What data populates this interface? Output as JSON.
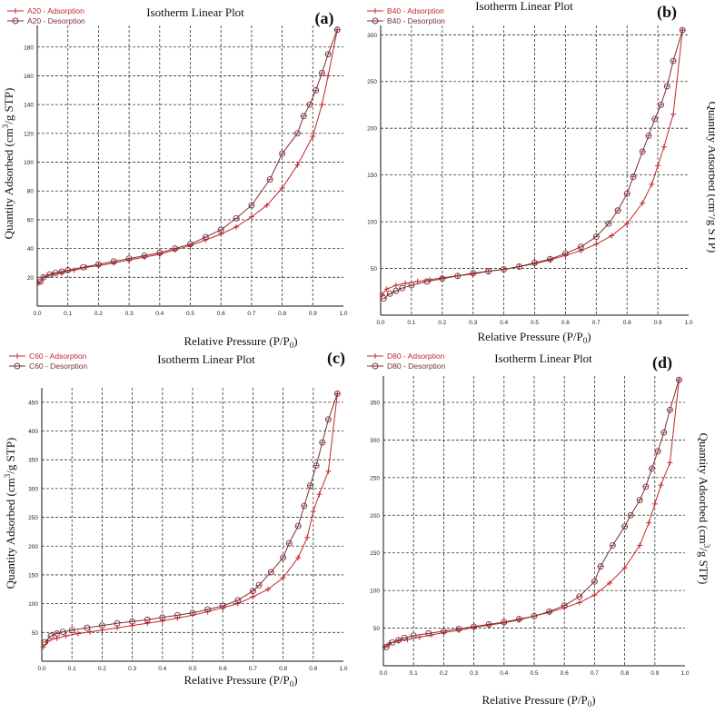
{
  "figure": {
    "subtitle_sub": "0",
    "ylabel_sup": "3"
  },
  "chart_data": [
    {
      "id": "a",
      "type": "line",
      "panel_label": "(a)",
      "title": "Isotherm Linear Plot",
      "xlabel": "Relative Pressure (P/P",
      "xlabel_sub": "0",
      "xlabel_end": ")",
      "ylabel_pre": "Quantity Adsorbed (cm",
      "ylabel_sup": "3",
      "ylabel_post": "/g STP)",
      "ylabel_side": "left",
      "xlim": [
        0,
        1
      ],
      "ylim": [
        0,
        195
      ],
      "xticks": [
        "0.0",
        "0.1",
        "0.2",
        "0.3",
        "0.4",
        "0.5",
        "0.6",
        "0.7",
        "0.8",
        "0.9",
        "1.0"
      ],
      "yticks": [
        20,
        40,
        60,
        80,
        100,
        120,
        140,
        160,
        180
      ],
      "legend": [
        "A20 - Adsorption",
        "A20 - Desorption"
      ],
      "series": [
        {
          "name": "A20 - Adsorption",
          "marker": "plus",
          "color": "#c0282d",
          "x": [
            0.005,
            0.02,
            0.05,
            0.08,
            0.12,
            0.16,
            0.2,
            0.25,
            0.3,
            0.35,
            0.4,
            0.45,
            0.5,
            0.55,
            0.6,
            0.65,
            0.7,
            0.75,
            0.8,
            0.85,
            0.9,
            0.93,
            0.95,
            0.98
          ],
          "y": [
            16,
            20,
            22,
            23,
            25,
            27,
            28,
            30,
            32,
            34,
            36,
            39,
            42,
            46,
            50,
            55,
            62,
            70,
            82,
            98,
            118,
            140,
            160,
            192
          ]
        },
        {
          "name": "A20 - Desorption",
          "marker": "circle",
          "color": "#7b3035",
          "x": [
            0.98,
            0.95,
            0.93,
            0.91,
            0.89,
            0.87,
            0.85,
            0.8,
            0.76,
            0.7,
            0.65,
            0.6,
            0.55,
            0.5,
            0.45,
            0.4,
            0.35,
            0.3,
            0.25,
            0.2,
            0.15,
            0.1,
            0.08,
            0.06,
            0.04,
            0.02,
            0.01
          ],
          "y": [
            192,
            175,
            162,
            150,
            140,
            132,
            120,
            106,
            88,
            70,
            61,
            53,
            48,
            43,
            40,
            37,
            35,
            33,
            31,
            29,
            27,
            25,
            24,
            23,
            22,
            20,
            17
          ]
        }
      ]
    },
    {
      "id": "b",
      "type": "line",
      "panel_label": "(b)",
      "title": "Isotherm Linear Plot",
      "xlabel": "Relative Pressure (P/P",
      "xlabel_sub": "0",
      "xlabel_end": ")",
      "ylabel_pre": "Quantity Adsorbed (cm",
      "ylabel_sup": "3",
      "ylabel_post": "/g STP)",
      "ylabel_side": "right",
      "xlim": [
        0,
        1
      ],
      "ylim": [
        0,
        310
      ],
      "xticks": [
        "0.0",
        "0.1",
        "0.2",
        "0.3",
        "0.4",
        "0.5",
        "0.6",
        "0.7",
        "0.8",
        "0.9",
        "1.0"
      ],
      "yticks": [
        50,
        100,
        150,
        200,
        250,
        300
      ],
      "legend": [
        "B40 - Adsorption",
        "B40 - Desorption"
      ],
      "series": [
        {
          "name": "B40 - Adsorption",
          "marker": "plus",
          "color": "#c0282d",
          "x": [
            0.005,
            0.02,
            0.05,
            0.08,
            0.12,
            0.16,
            0.2,
            0.25,
            0.3,
            0.35,
            0.4,
            0.45,
            0.5,
            0.55,
            0.6,
            0.65,
            0.7,
            0.75,
            0.8,
            0.85,
            0.88,
            0.9,
            0.92,
            0.95,
            0.98
          ],
          "y": [
            22,
            28,
            32,
            34,
            36,
            38,
            40,
            42,
            44,
            47,
            49,
            52,
            55,
            59,
            64,
            69,
            76,
            85,
            98,
            120,
            140,
            160,
            180,
            215,
            305
          ]
        },
        {
          "name": "B40 - Desorption",
          "marker": "circle",
          "color": "#7b3035",
          "x": [
            0.98,
            0.95,
            0.93,
            0.91,
            0.89,
            0.87,
            0.85,
            0.82,
            0.8,
            0.77,
            0.74,
            0.7,
            0.65,
            0.6,
            0.55,
            0.5,
            0.45,
            0.4,
            0.35,
            0.3,
            0.25,
            0.2,
            0.15,
            0.1,
            0.07,
            0.05,
            0.03,
            0.01
          ],
          "y": [
            305,
            272,
            245,
            225,
            210,
            192,
            175,
            148,
            130,
            112,
            98,
            84,
            73,
            66,
            60,
            56,
            52,
            49,
            47,
            45,
            42,
            39,
            36,
            32,
            29,
            26,
            23,
            18
          ]
        }
      ]
    },
    {
      "id": "c",
      "type": "line",
      "panel_label": "(c)",
      "title": "Isotherm Linear Plot",
      "xlabel": "Relative Pressure (P/P",
      "xlabel_sub": "0",
      "xlabel_end": ")",
      "ylabel_pre": "Quantity Adsorbed (cm",
      "ylabel_sup": "3",
      "ylabel_post": "/g STP)",
      "ylabel_side": "left",
      "xlim": [
        0,
        1
      ],
      "ylim": [
        0,
        475
      ],
      "xticks": [
        "0.0",
        "0.1",
        "0.2",
        "0.3",
        "0.4",
        "0.5",
        "0.6",
        "0.7",
        "0.8",
        "0.9",
        "1.0"
      ],
      "yticks": [
        50,
        100,
        150,
        200,
        250,
        300,
        350,
        400,
        450
      ],
      "legend": [
        "C60 - Adsorption",
        "C60 - Desorption"
      ],
      "series": [
        {
          "name": "C60 - Adsorption",
          "marker": "plus",
          "color": "#c0282d",
          "x": [
            0.005,
            0.02,
            0.05,
            0.08,
            0.12,
            0.16,
            0.2,
            0.25,
            0.3,
            0.35,
            0.4,
            0.45,
            0.5,
            0.55,
            0.6,
            0.65,
            0.7,
            0.75,
            0.8,
            0.85,
            0.88,
            0.9,
            0.92,
            0.95,
            0.98
          ],
          "y": [
            25,
            35,
            40,
            44,
            48,
            51,
            54,
            58,
            62,
            66,
            70,
            75,
            80,
            86,
            93,
            100,
            112,
            125,
            145,
            180,
            215,
            260,
            290,
            330,
            465
          ]
        },
        {
          "name": "C60 - Desorption",
          "marker": "circle",
          "color": "#7b3035",
          "x": [
            0.98,
            0.95,
            0.93,
            0.91,
            0.89,
            0.87,
            0.85,
            0.82,
            0.8,
            0.76,
            0.72,
            0.7,
            0.65,
            0.6,
            0.55,
            0.5,
            0.45,
            0.4,
            0.35,
            0.3,
            0.25,
            0.2,
            0.15,
            0.1,
            0.07,
            0.05,
            0.03,
            0.01
          ],
          "y": [
            465,
            420,
            380,
            340,
            305,
            270,
            235,
            205,
            180,
            155,
            132,
            122,
            106,
            96,
            90,
            84,
            80,
            76,
            72,
            69,
            66,
            62,
            58,
            54,
            51,
            48,
            44,
            33
          ]
        }
      ]
    },
    {
      "id": "d",
      "type": "line",
      "panel_label": "(d)",
      "title": "Isotherm Linear Plot",
      "xlabel": "Relative Pressure (P/P",
      "xlabel_sub": "0",
      "xlabel_end": ")",
      "ylabel_pre": "Quantity Adsorbed (cm",
      "ylabel_sup": "3",
      "ylabel_post": "/g STP)",
      "ylabel_side": "right",
      "xlim": [
        0,
        1
      ],
      "ylim": [
        0,
        385
      ],
      "xticks": [
        "0.0",
        "0.1",
        "0.2",
        "0.3",
        "0.4",
        "0.5",
        "0.6",
        "0.7",
        "0.8",
        "0.9",
        "1.0"
      ],
      "yticks": [
        50,
        100,
        150,
        200,
        250,
        300,
        350
      ],
      "legend": [
        "D80 - Adsorption",
        "D80 - Desorption"
      ],
      "series": [
        {
          "name": "D80 - Adsorption",
          "marker": "plus",
          "color": "#c0282d",
          "x": [
            0.005,
            0.02,
            0.05,
            0.08,
            0.12,
            0.16,
            0.2,
            0.25,
            0.3,
            0.35,
            0.4,
            0.45,
            0.5,
            0.55,
            0.6,
            0.65,
            0.7,
            0.75,
            0.8,
            0.85,
            0.88,
            0.9,
            0.92,
            0.95,
            0.98
          ],
          "y": [
            25,
            30,
            33,
            35,
            38,
            41,
            44,
            47,
            51,
            54,
            57,
            61,
            66,
            71,
            77,
            84,
            94,
            110,
            130,
            160,
            190,
            215,
            240,
            270,
            380
          ]
        },
        {
          "name": "D80 - Desorption",
          "marker": "circle",
          "color": "#7b3035",
          "x": [
            0.98,
            0.95,
            0.93,
            0.91,
            0.89,
            0.87,
            0.85,
            0.82,
            0.8,
            0.76,
            0.72,
            0.7,
            0.65,
            0.6,
            0.55,
            0.5,
            0.45,
            0.4,
            0.35,
            0.3,
            0.25,
            0.2,
            0.15,
            0.1,
            0.07,
            0.05,
            0.03,
            0.01
          ],
          "y": [
            380,
            340,
            310,
            285,
            262,
            238,
            220,
            200,
            185,
            160,
            132,
            112,
            92,
            80,
            72,
            66,
            62,
            58,
            55,
            52,
            49,
            46,
            43,
            40,
            37,
            34,
            31,
            25
          ]
        }
      ]
    }
  ]
}
